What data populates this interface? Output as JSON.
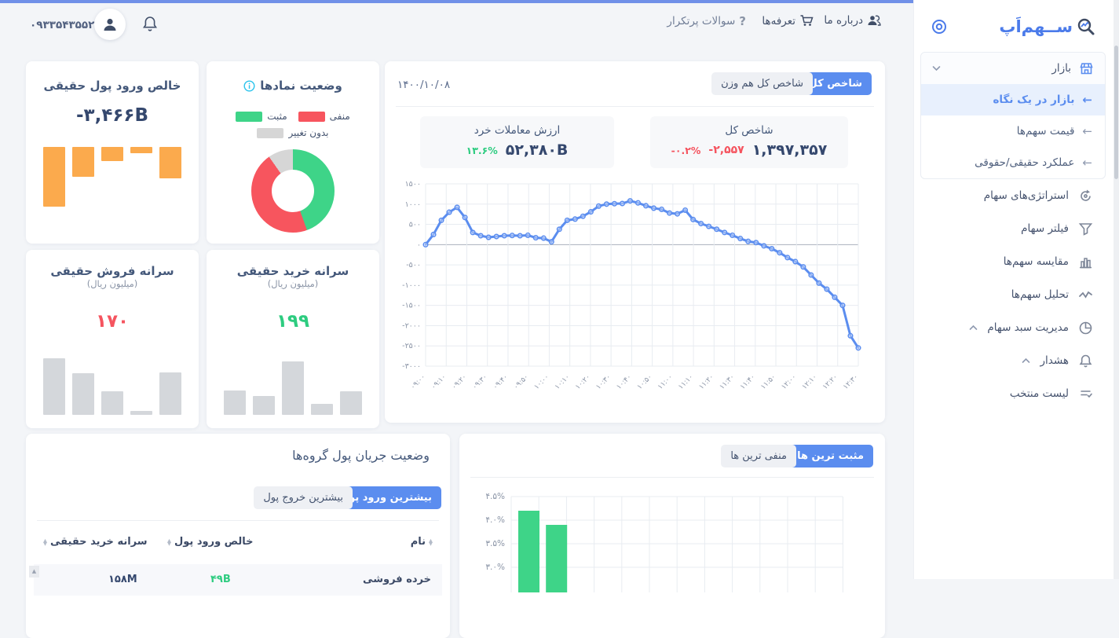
{
  "header": {
    "phone": "۰۹۳۳۵۴۳۵۵۲۳",
    "about": "درباره ما",
    "pricing": "تعرفه‌ها",
    "faq": "سوالات پرتکرار"
  },
  "sidebar": {
    "logo": "ســهم‌اَپ",
    "market": {
      "label": "بازار"
    },
    "market_sub": [
      {
        "label": "بازار در یک نگاه",
        "active": true
      },
      {
        "label": "قیمت سهم‌ها",
        "active": false
      },
      {
        "label": "عملکرد حقیقی/حقوقی",
        "active": false
      }
    ],
    "items": [
      {
        "label": "استراتژی‌های سهام"
      },
      {
        "label": "فیلتر سهام"
      },
      {
        "label": "مقایسه سهم‌ها"
      },
      {
        "label": "تحلیل سهم‌ها"
      },
      {
        "label": "مدیریت سبد سهام"
      },
      {
        "label": "هشدار"
      },
      {
        "label": "لیست منتخب"
      }
    ]
  },
  "net_inflow": {
    "title": "خالص ورود پول حقیقی",
    "value": "-۳,۴۶۶B"
  },
  "symbols": {
    "title": "وضعیت نمادها",
    "legend_negative": "منفی",
    "legend_positive": "مثبت",
    "legend_unchanged": "بدون تغییر"
  },
  "index_card": {
    "date": "۱۴۰۰/۱۰/۰۸",
    "tab_total": "شاخص کل",
    "tab_equal_weight": "شاخص کل هم وزن",
    "trade_value": {
      "label": "ارزش معاملات خرد",
      "value": "۵۲,۳۸۰B",
      "change": "۱۳.۶%"
    },
    "total_index": {
      "label": "شاخص کل",
      "value": "۱,۳۹۷,۳۵۷",
      "change": "-۲,۵۵۷",
      "change_pct": "-۰.۲%"
    }
  },
  "sell_card": {
    "title": "سرانه فروش حقیقی",
    "unit": "(میلیون ریال)",
    "value": "۱۷۰"
  },
  "buy_card": {
    "title": "سرانه خرید حقیقی",
    "unit": "(میلیون ریال)",
    "value": "۱۹۹"
  },
  "money_flow": {
    "title": "وضعیت جریان پول گروه‌ها",
    "tab_inflow": "بیشترین ورود پول",
    "tab_outflow": "بیشترین خروج پول",
    "headers": {
      "name": "نام",
      "net_inflow": "خالص ورود پول",
      "buy_per_capita": "سرانه خرید حقیقی"
    },
    "rows": [
      {
        "name": "خرده فروشی",
        "net_inflow": "۴۹B",
        "buy_per_capita": "۱۵۸M"
      }
    ]
  },
  "top_movers": {
    "tab_positive": "مثبت ترین ها",
    "tab_negative": "منفی ترین ها"
  },
  "chart_data": [
    {
      "id": "index_line",
      "type": "line",
      "title": "شاخص کل",
      "color": "#5b8def",
      "ylim": [
        -3000,
        1500
      ],
      "y_ticks": [
        1500,
        1000,
        500,
        0,
        -500,
        -1000,
        -1500,
        -2000,
        -2500,
        -3000
      ],
      "y_tick_labels": [
        "۱۵۰۰",
        "۱۰۰۰",
        "۵۰۰",
        "۰",
        "-۵۰۰",
        "-۱۰۰۰",
        "-۱۵۰۰",
        "-۲۰۰۰",
        "-۲۵۰۰",
        "-۳۰۰۰"
      ],
      "x_labels": [
        "۰۹:۰۰",
        "۰۹:۱۰",
        "۰۹:۲۰",
        "۰۹:۳۰",
        "۰۹:۴۰",
        "۰۹:۵۰",
        "۱۰:۰۰",
        "۱۰:۱۰",
        "۱۰:۲۰",
        "۱۰:۳۰",
        "۱۰:۴۰",
        "۱۰:۵۰",
        "۱۱:۰۰",
        "۱۱:۱۰",
        "۱۱:۲۰",
        "۱۱:۳۰",
        "۱۱:۴۰",
        "۱۱:۵۰",
        "۱۲:۰۰",
        "۱۲:۱۰",
        "۱۲:۲۰",
        "۱۲:۳۰"
      ],
      "values": [
        0,
        250,
        600,
        800,
        920,
        670,
        300,
        220,
        180,
        200,
        220,
        225,
        220,
        230,
        170,
        160,
        70,
        380,
        600,
        630,
        700,
        810,
        950,
        1000,
        1010,
        1015,
        1080,
        1030,
        960,
        900,
        870,
        780,
        760,
        850,
        620,
        520,
        450,
        380,
        300,
        230,
        150,
        80,
        50,
        -30,
        -100,
        -200,
        -320,
        -420,
        -550,
        -750,
        -950,
        -1100,
        -1300,
        -1500,
        -2250,
        -2550
      ],
      "grid": true,
      "legend_position": "none"
    },
    {
      "id": "net_inflow_bars",
      "type": "bar",
      "title": "خالص ورود پول حقیقی",
      "baseline": "top",
      "color": "#fbaa4d",
      "values": [
        -76,
        -38,
        -18,
        -8,
        -40
      ],
      "note": "relative heights, bars hang below baseline"
    },
    {
      "id": "symbols_donut",
      "type": "pie",
      "title": "وضعیت نمادها",
      "slices": [
        {
          "name": "مثبت",
          "value": 44.5,
          "color": "#3ed488"
        },
        {
          "name": "منفی",
          "value": 45.8,
          "color": "#f7555e"
        },
        {
          "name": "بدون تغییر",
          "value": 9.7,
          "color": "#d6d6d6"
        }
      ]
    },
    {
      "id": "sell_bars",
      "type": "bar",
      "title": "سرانه فروش حقیقی",
      "color": "#d4d7db",
      "values": [
        72,
        53,
        30,
        5,
        54
      ],
      "note": "relative heights"
    },
    {
      "id": "buy_bars",
      "type": "bar",
      "title": "سرانه خرید حقیقی",
      "color": "#d4d7db",
      "values": [
        31,
        24,
        68,
        14,
        30
      ],
      "note": "relative heights"
    },
    {
      "id": "top_gainers",
      "type": "bar",
      "title": "مثبت ترین ها",
      "color": "#3ed488",
      "values": [
        4.2,
        3.9
      ],
      "unit": "%",
      "ylim_visible": [
        3.0,
        4.5
      ],
      "y_tick_labels": [
        "۴.۵%",
        "۴.۰%",
        "۳.۵%",
        "۳.۰%"
      ],
      "grid": true
    }
  ],
  "colors": {
    "accent_blue": "#5b8def",
    "top_strip": "#7090e8",
    "green": "#2ecc80",
    "red": "#f5545f",
    "orange": "#fbaa4d",
    "gray_bar": "#d4d7db",
    "navy_text": "#35486e"
  }
}
